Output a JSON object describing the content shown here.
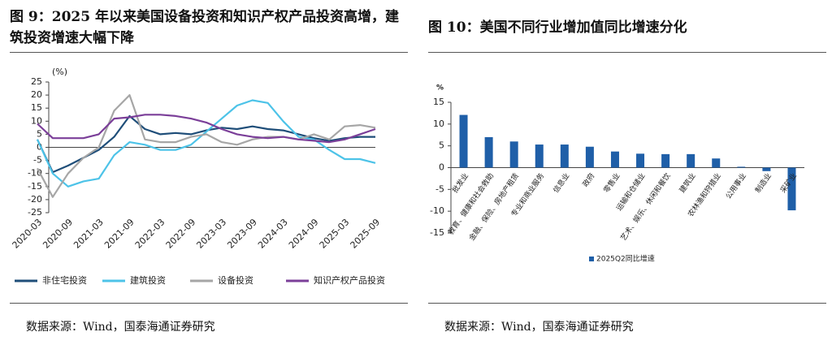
{
  "chart_data": [
    {
      "type": "line",
      "title": "图 9：2025 年以来美国设备投资和知识产权产品投资高增，建筑投资增速大幅下降",
      "y_label": "(%)",
      "source": "数据来源：Wind，国泰海通证券研究",
      "categories": [
        "2020-03",
        null,
        "2020-09",
        null,
        "2021-03",
        null,
        "2021-09",
        null,
        "2022-03",
        null,
        "2022-09",
        null,
        "2023-03",
        null,
        "2023-09",
        null,
        "2024-03",
        null,
        "2024-09",
        null,
        "2025-03",
        null,
        "2025-09"
      ],
      "ylim": [
        -25,
        25
      ],
      "yticks": [
        -25,
        -20,
        -15,
        -10,
        -5,
        0,
        5,
        10,
        15,
        20,
        25
      ],
      "legend": "bottom",
      "series": [
        {
          "name": "非住宅投资",
          "color": "#1f4e79",
          "values": [
            3,
            -9.5,
            -7,
            -4,
            -1,
            4,
            12,
            7,
            5,
            5.5,
            5,
            6.5,
            7.5,
            7,
            8,
            7,
            6.5,
            5,
            3.5,
            2.5,
            3.5,
            4,
            4
          ]
        },
        {
          "name": "建筑投资",
          "color": "#4dc3e8",
          "values": [
            3,
            -10,
            -15,
            -13,
            -12,
            -3,
            2,
            1,
            -1,
            -1,
            1,
            6,
            11,
            16,
            18,
            17,
            10,
            4,
            3,
            -1,
            -4.5,
            -4.5,
            -6
          ]
        },
        {
          "name": "设备投资",
          "color": "#a6a6a6",
          "values": [
            -8,
            -19,
            -10,
            -4,
            0,
            14,
            20,
            3,
            2,
            2,
            4,
            5,
            2,
            1,
            3,
            4,
            4,
            3,
            5,
            3,
            8,
            8.5,
            7.5
          ]
        },
        {
          "name": "知识产权产品投资",
          "color": "#7b3f99",
          "values": [
            9,
            3.5,
            3.5,
            3.5,
            5,
            11,
            11.5,
            12.5,
            12.5,
            12,
            11,
            9.5,
            7,
            5,
            4,
            3.5,
            4,
            3,
            2.5,
            2,
            3,
            5,
            7
          ]
        }
      ]
    },
    {
      "type": "bar",
      "title": "图 10：美国不同行业增加值同比增速分化",
      "y_label": "%",
      "source": "数据来源：Wind，国泰海通证券研究",
      "categories": [
        "批发业",
        "教育、健康和社会救助",
        "金融、保险、房地产租赁",
        "专业和商业服务",
        "信息业",
        "政府",
        "零售业",
        "运输和仓储业",
        "艺术、娱乐、休闲和餐饮",
        "建筑业",
        "农林渔和狩猎业",
        "公用事业",
        "制造业",
        "采矿业"
      ],
      "ylim": [
        -15,
        15
      ],
      "yticks": [
        -15,
        -10,
        -5,
        0,
        5,
        10,
        15
      ],
      "legend": "bottom-left",
      "series": [
        {
          "name": "2025Q2同比增速",
          "color": "#1f5fa8",
          "values": [
            12.1,
            7,
            6,
            5.3,
            5.3,
            4.8,
            3.7,
            3.2,
            3.1,
            3.1,
            2.1,
            0.2,
            -0.8,
            -9.8
          ]
        }
      ]
    }
  ]
}
